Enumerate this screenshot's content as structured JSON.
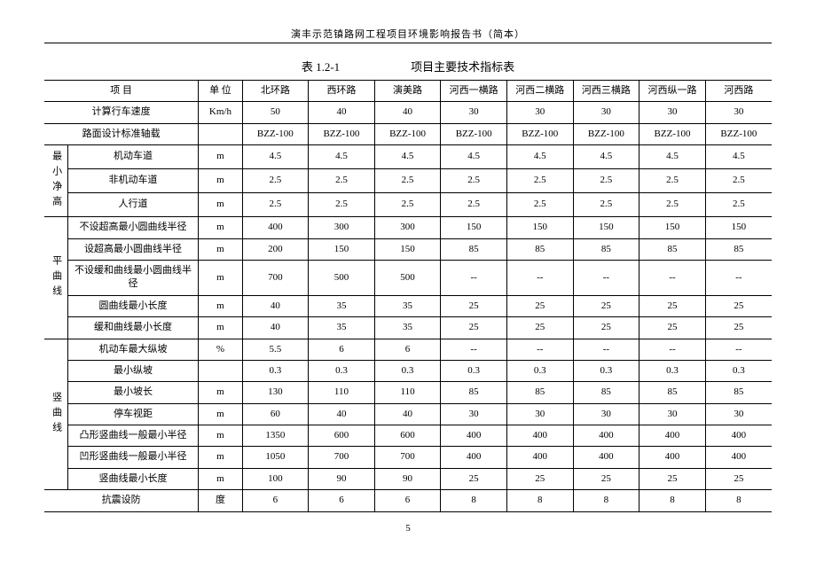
{
  "page_header": "演丰示范镇路网工程项目环境影响报告书（简本）",
  "caption_left": "表 1.2-1",
  "caption_right": "项目主要技术指标表",
  "page_number": "5",
  "header": {
    "item": "项 目",
    "unit": "单 位",
    "roads": [
      "北环路",
      "西环路",
      "演美路",
      "河西一横路",
      "河西二横路",
      "河西三横路",
      "河西纵一路",
      "河西路"
    ]
  },
  "groups": [
    {
      "label": "",
      "rows": [
        {
          "item": "计算行车速度",
          "unit": "Km/h",
          "vals": [
            "50",
            "40",
            "40",
            "30",
            "30",
            "30",
            "30",
            "30"
          ]
        },
        {
          "item": "路面设计标准轴载",
          "unit": "",
          "vals": [
            "BZZ-100",
            "BZZ-100",
            "BZZ-100",
            "BZZ-100",
            "BZZ-100",
            "BZZ-100",
            "BZZ-100",
            "BZZ-100"
          ]
        }
      ]
    },
    {
      "label": "最小净高",
      "rows": [
        {
          "item": "机动车道",
          "unit": "m",
          "vals": [
            "4.5",
            "4.5",
            "4.5",
            "4.5",
            "4.5",
            "4.5",
            "4.5",
            "4.5"
          ]
        },
        {
          "item": "非机动车道",
          "unit": "m",
          "vals": [
            "2.5",
            "2.5",
            "2.5",
            "2.5",
            "2.5",
            "2.5",
            "2.5",
            "2.5"
          ]
        },
        {
          "item": "人行道",
          "unit": "m",
          "vals": [
            "2.5",
            "2.5",
            "2.5",
            "2.5",
            "2.5",
            "2.5",
            "2.5",
            "2.5"
          ]
        }
      ]
    },
    {
      "label": "平曲线",
      "rows": [
        {
          "item": "不设超高最小圆曲线半径",
          "unit": "m",
          "vals": [
            "400",
            "300",
            "300",
            "150",
            "150",
            "150",
            "150",
            "150"
          ]
        },
        {
          "item": "设超高最小圆曲线半径",
          "unit": "m",
          "vals": [
            "200",
            "150",
            "150",
            "85",
            "85",
            "85",
            "85",
            "85"
          ]
        },
        {
          "item": "不设缓和曲线最小圆曲线半径",
          "unit": "m",
          "vals": [
            "700",
            "500",
            "500",
            "--",
            "--",
            "--",
            "--",
            "--"
          ]
        },
        {
          "item": "圆曲线最小长度",
          "unit": "m",
          "vals": [
            "40",
            "35",
            "35",
            "25",
            "25",
            "25",
            "25",
            "25"
          ]
        },
        {
          "item": "缓和曲线最小长度",
          "unit": "m",
          "vals": [
            "40",
            "35",
            "35",
            "25",
            "25",
            "25",
            "25",
            "25"
          ]
        }
      ]
    },
    {
      "label": "竖曲线",
      "rows": [
        {
          "item": "机动车最大纵坡",
          "unit": "%",
          "vals": [
            "5.5",
            "6",
            "6",
            "--",
            "--",
            "--",
            "--",
            "--"
          ]
        },
        {
          "item": "最小纵坡",
          "unit": "",
          "vals": [
            "0.3",
            "0.3",
            "0.3",
            "0.3",
            "0.3",
            "0.3",
            "0.3",
            "0.3"
          ]
        },
        {
          "item": "最小坡长",
          "unit": "m",
          "vals": [
            "130",
            "110",
            "110",
            "85",
            "85",
            "85",
            "85",
            "85"
          ]
        },
        {
          "item": "停车视距",
          "unit": "m",
          "vals": [
            "60",
            "40",
            "40",
            "30",
            "30",
            "30",
            "30",
            "30"
          ]
        },
        {
          "item": "凸形竖曲线一般最小半径",
          "unit": "m",
          "vals": [
            "1350",
            "600",
            "600",
            "400",
            "400",
            "400",
            "400",
            "400"
          ]
        },
        {
          "item": "凹形竖曲线一般最小半径",
          "unit": "m",
          "vals": [
            "1050",
            "700",
            "700",
            "400",
            "400",
            "400",
            "400",
            "400"
          ]
        },
        {
          "item": "竖曲线最小长度",
          "unit": "m",
          "vals": [
            "100",
            "90",
            "90",
            "25",
            "25",
            "25",
            "25",
            "25"
          ]
        }
      ]
    },
    {
      "label": "",
      "rows": [
        {
          "item": "抗震设防",
          "unit": "度",
          "vals": [
            "6",
            "6",
            "6",
            "8",
            "8",
            "8",
            "8",
            "8"
          ]
        }
      ]
    }
  ]
}
